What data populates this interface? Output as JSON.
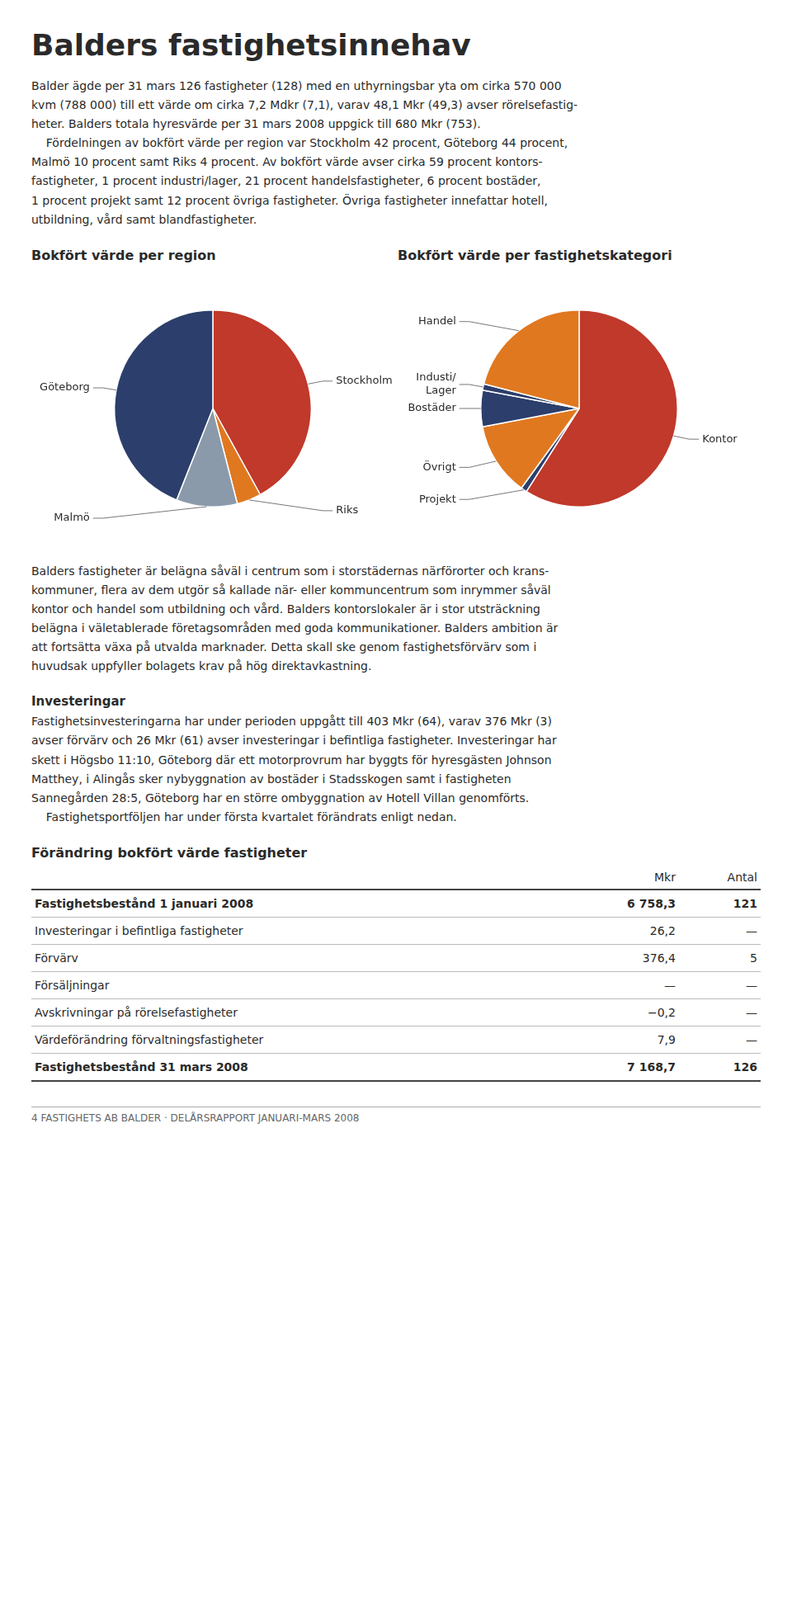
{
  "chart_data": [
    {
      "type": "pie",
      "title": "Bokfört värde per region",
      "categories": [
        "Stockholm",
        "Riks",
        "Malmö",
        "Göteborg"
      ],
      "values": [
        42,
        4,
        10,
        44
      ],
      "colors": [
        "#c0392b",
        "#e07820",
        "#8a9aaa",
        "#2c3e6b"
      ],
      "annotations": [
        "Balders fastighetsinnehav",
        "Balder ägde per 31 mars 126 fastigheter (128) med en uthyrningsbar yta om cirka 570 000\nkvm (788 000) till ett värde om cirka 7,2 Mdkr (7,1), varav 48,1 Mkr (49,3) avser rörelsefastig-\nheter. Balders totala hyresvärde per 31 mars 2008 uppgick till 680 Mkr (753).\n    Fördelningen av bokfört värde per region var Stockholm 42 procent, Göteborg 44 procent,\nMalmö 10 procent samt Riks 4 procent. Av bokfört värde avser cirka 59 procent kontors-\nfastigheter, 1 procent industri/lager, 21 procent handelsfastigheter, 6 procent bostäder,\n1 procent projekt samt 12 procent övriga fastigheter. Övriga fastigheter innefattar hotell,\nutbildning, vård samt blandfastigheter."
      ]
    },
    {
      "type": "pie",
      "title": "Bokfört värde per fastighetskategori",
      "categories": [
        "Kontor",
        "Projekt",
        "Övrigt",
        "Bostäder",
        "Industi/\nLager",
        "Handel"
      ],
      "values": [
        59,
        1,
        12,
        6,
        1,
        21
      ],
      "colors": [
        "#c0392b",
        "#2c3e6b",
        "#e07820",
        "#2c3e6b",
        "#2c3e6b",
        "#e07820"
      ],
      "annotations": [
        "Balders fastigheter är belägna såväl i centrum som i storstädernas närförorter och krans-\nkommuner, flera av dem utgör så kallade när- eller kommuncentrum som inrymmer såväl\nkontor och handel som utbildning och vård. Balders kontorslokaler är i stor utsträckning\nbelägna i väletablerade företagsområden med goda kommunikationer. Balders ambition är\natt fortsätta växa på utvalda marknader. Detta skall ske genom fastighetsförvärv som i\nhuvudsak uppfyller bolagets krav på hög direktavkastning.",
        "Investeringar",
        "Fastighetsinvesteringarna har under perioden uppgått till 403 Mkr (64), varav 376 Mkr (3)\navser förvärv och 26 Mkr (61) avser investeringar i befintliga fastigheter. Investeringar har\nskett i Högsbo 11:10, Göteborg där ett motorprovrum har byggts för hyresgästen Johnson\nMatthey, i Alingås sker nybyggnation av bostäder i Stadsskogen samt i fastigheten\nSannegården 28:5, Göteborg har en större ombyggnation av Hotell Villan genomförts.\n    Fastighetsportföljen har under första kvartalet förändrats enligt nedan.",
        "Förändring bokfört värde fastigheter",
        [
          "Mkr",
          "Antal"
        ],
        [
          "Fastighetsbestånd 1 januari 2008",
          "6 758,3",
          "121"
        ],
        [
          "Investeringar i befintliga fastigheter",
          "26,2",
          "—"
        ],
        [
          "Förvärv",
          "376,4",
          "5"
        ],
        [
          "Försäljningar",
          "—",
          "—"
        ],
        [
          "Avskrivningar på rörelsefastigheter",
          "−0,2",
          "—"
        ],
        [
          "Värdeförändring förvaltningsfastigheter",
          "7,9",
          "—"
        ],
        [
          "Fastighetsbestånd 31 mars 2008",
          "7 168,7",
          "126"
        ],
        "4   FASTIGHETS AB BALDER · DELÅRSRAPPORT JANUARI-MARS 2008"
      ]
    }
  ]
}
